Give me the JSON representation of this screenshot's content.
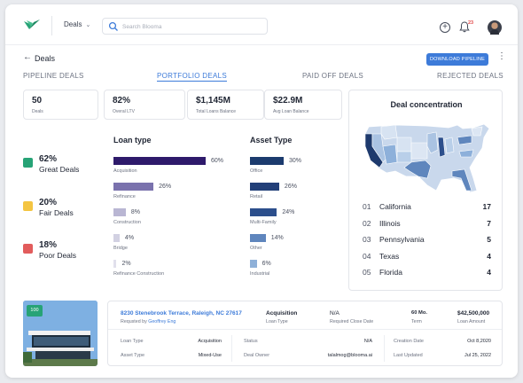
{
  "header": {
    "nav_dropdown": "Deals",
    "search_placeholder": "Search Blooma",
    "notification_count": "23"
  },
  "page": {
    "title": "Deals",
    "download_label": "DOWNLOAD PIPELINE"
  },
  "tabs": [
    {
      "label": "PIPELINE DEALS",
      "active": false
    },
    {
      "label": "PORTFOLIO  DEALS",
      "active": true
    },
    {
      "label": "PAID OFF DEALS",
      "active": false
    },
    {
      "label": "REJECTED DEALS",
      "active": false
    }
  ],
  "stats": [
    {
      "value": "50",
      "label": "Deals"
    },
    {
      "value": "82%",
      "label": "Overal LTV"
    },
    {
      "value": "$1,145M",
      "label": "Total Loans Balance"
    },
    {
      "value": "$22.9M",
      "label": "Avg Loan Balance"
    }
  ],
  "grades": [
    {
      "percent": "62%",
      "label": "Great Deals",
      "color": "#27a376"
    },
    {
      "percent": "20%",
      "label": "Fair Deals",
      "color": "#f4c542"
    },
    {
      "percent": "18%",
      "label": "Poor Deals",
      "color": "#e25c5c"
    }
  ],
  "loan_type": {
    "title": "Loan type",
    "items": [
      {
        "label": "Acquisition",
        "value": 60,
        "display": "60%",
        "color": "#2e1a6b"
      },
      {
        "label": "Refinance",
        "value": 26,
        "display": "26%",
        "color": "#7a72ad"
      },
      {
        "label": "Construction",
        "value": 8,
        "display": "8%",
        "color": "#b9b6d3"
      },
      {
        "label": "Bridge",
        "value": 4,
        "display": "4%",
        "color": "#d2d1e2"
      },
      {
        "label": "Refinance Construction",
        "value": 2,
        "display": "2%",
        "color": "#e1e0ec"
      }
    ]
  },
  "asset_type": {
    "title": "Asset Type",
    "items": [
      {
        "label": "Office",
        "value": 30,
        "display": "30%",
        "color": "#1c3b6e"
      },
      {
        "label": "Retail",
        "value": 26,
        "display": "26%",
        "color": "#223f78"
      },
      {
        "label": "Multi-Family",
        "value": 24,
        "display": "24%",
        "color": "#2c4f8c"
      },
      {
        "label": "Other",
        "value": 14,
        "display": "14%",
        "color": "#5f86bd"
      },
      {
        "label": "Industrial",
        "value": 6,
        "display": "6%",
        "color": "#8eb0d8"
      }
    ]
  },
  "concentration": {
    "title": "Deal concentration",
    "items": [
      {
        "rank": "01",
        "state": "California",
        "count": "17"
      },
      {
        "rank": "02",
        "state": "Illinois",
        "count": "7"
      },
      {
        "rank": "03",
        "state": "Pennsylvania",
        "count": "5"
      },
      {
        "rank": "04",
        "state": "Texas",
        "count": "4"
      },
      {
        "rank": "05",
        "state": "Florida",
        "count": "4"
      }
    ]
  },
  "deal": {
    "badge": "100",
    "address": "8230 Stenebrook Terrace, Raleigh, NC 27617",
    "requested_by_label": "Requsted by",
    "requested_by": "Geoffrey Eng",
    "loan_type_value": "Acquisition",
    "loan_type_label": "Loan Type",
    "close_date_value": "N/A",
    "close_date_label": "Required Close Date",
    "term_value": "60 Mo.",
    "term_label": "Term",
    "amount_value": "$42,500,000",
    "amount_label": "Loan Amount",
    "rows": [
      {
        "label": "Loan Type",
        "value": "Acquisition"
      },
      {
        "label": "Asset Type",
        "value": "Mixed-Use"
      },
      {
        "label": "Status",
        "value": "N/A"
      },
      {
        "label": "Deal Owner",
        "value": "talalmog@blooma.ai"
      },
      {
        "label": "Creation Date",
        "value": "Oct 8,2020"
      },
      {
        "label": "Last Updated",
        "value": "Jul 25, 2022"
      }
    ]
  }
}
